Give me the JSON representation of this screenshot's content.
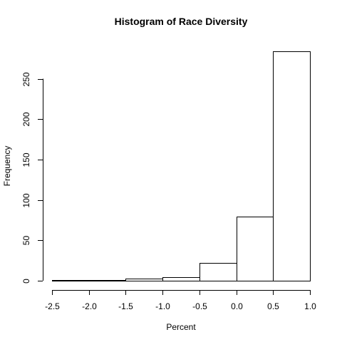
{
  "chart_data": {
    "type": "bar",
    "title": "Histogram of Race Diversity",
    "xlabel": "Percent",
    "ylabel": "Frequency",
    "bins": [
      {
        "start": -2.5,
        "end": -2.0,
        "value": 1
      },
      {
        "start": -2.0,
        "end": -1.5,
        "value": 1
      },
      {
        "start": -1.5,
        "end": -1.0,
        "value": 3
      },
      {
        "start": -1.0,
        "end": -0.5,
        "value": 4
      },
      {
        "start": -0.5,
        "end": 0.0,
        "value": 22
      },
      {
        "start": 0.0,
        "end": 0.5,
        "value": 79
      },
      {
        "start": 0.5,
        "end": 1.0,
        "value": 284
      }
    ],
    "xlim": [
      -2.5,
      1.0
    ],
    "ylim": [
      0,
      284
    ],
    "x_ticks": [
      -2.5,
      -2.0,
      -1.5,
      -1.0,
      -0.5,
      0.0,
      0.5,
      1.0
    ],
    "x_tick_labels": [
      "-2.5",
      "-2.0",
      "-1.5",
      "-1.0",
      "-0.5",
      "0.0",
      "0.5",
      "1.0"
    ],
    "y_ticks": [
      0,
      50,
      100,
      150,
      200,
      250
    ],
    "y_tick_labels": [
      "0",
      "50",
      "100",
      "150",
      "200",
      "250"
    ],
    "grid": false,
    "legend": "none"
  }
}
